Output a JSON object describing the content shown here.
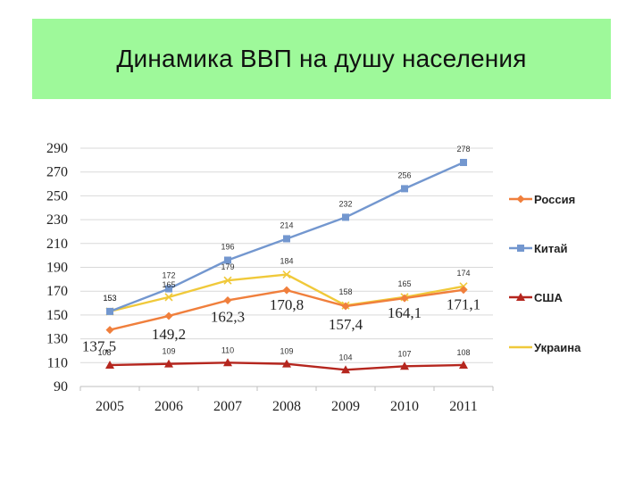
{
  "slide": {
    "title": "Динамика ВВП на душу населения"
  },
  "colors": {
    "Россия": "#f07f3c",
    "Китай": "#7397cf",
    "США": "#b5261e",
    "Украина": "#f0c93a",
    "title_band": "#9ef99a",
    "grid": "#d9d9d9"
  },
  "chart_data": {
    "type": "line",
    "title": "",
    "xlabel": "",
    "ylabel": "",
    "x": [
      "2005",
      "2006",
      "2007",
      "2008",
      "2009",
      "2010",
      "2011"
    ],
    "ylim": [
      90,
      290
    ],
    "yticks": [
      90,
      110,
      130,
      150,
      170,
      190,
      210,
      230,
      250,
      270,
      290
    ],
    "grid": true,
    "legend": "right",
    "series": [
      {
        "name": "Россия",
        "values": [
          137.5,
          149.2,
          162.3,
          170.8,
          157.4,
          164.1,
          171.1
        ],
        "labels": [
          "137,5",
          "149,2",
          "162,3",
          "170,8",
          "157,4",
          "164,1",
          "171,1"
        ],
        "marker": "diamond"
      },
      {
        "name": "Китай",
        "values": [
          153,
          172,
          196,
          214,
          232,
          256,
          278
        ],
        "labels": [
          "153",
          "172",
          "196",
          "214",
          "232",
          "256",
          "278"
        ],
        "marker": "square"
      },
      {
        "name": "США",
        "values": [
          108,
          109,
          110,
          109,
          104,
          107,
          108
        ],
        "labels": [
          "108",
          "109",
          "110",
          "109",
          "104",
          "107",
          "108"
        ],
        "marker": "triangle"
      },
      {
        "name": "Украина",
        "values": [
          153,
          165,
          179,
          184,
          158,
          165,
          174
        ],
        "labels": [
          "153",
          "165",
          "179",
          "184",
          "158",
          "165",
          "174"
        ],
        "marker": "x"
      }
    ]
  }
}
